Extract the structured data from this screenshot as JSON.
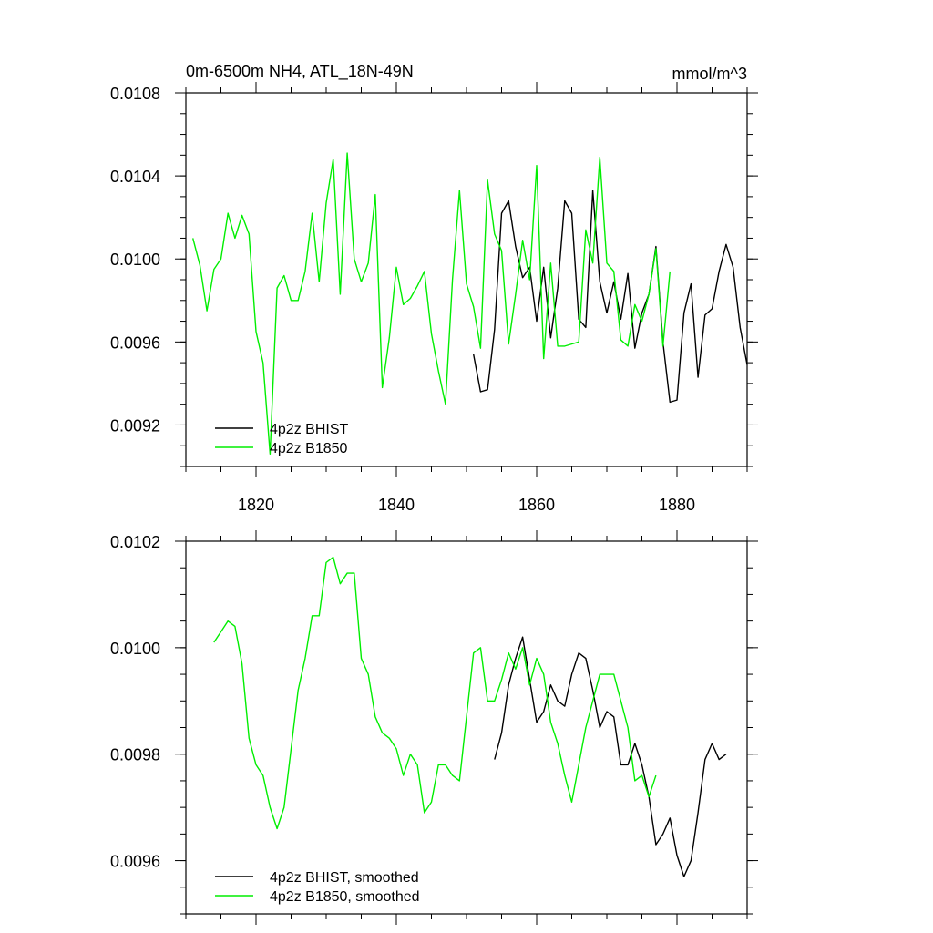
{
  "chart_data": [
    {
      "type": "line",
      "title": "0m-6500m NH4, ATL_18N-49N",
      "units": "mmol/m^3",
      "xlim": [
        1810,
        1890
      ],
      "ylim": [
        0.009,
        0.0108
      ],
      "x_ticks": [
        1820,
        1840,
        1860,
        1880
      ],
      "x_minor_step": 5,
      "y_ticks": [
        "0.0092",
        "0.0096",
        "0.0100",
        "0.0104",
        "0.0108"
      ],
      "y_minor_step": 0.0001,
      "grid": false,
      "legend_position": "bottom-left",
      "colors": {
        "bhist": "#000000",
        "b1850": "#00ee00"
      },
      "series": [
        {
          "name": "4p2z BHIST",
          "color": "#000000",
          "x_start": 1851,
          "values": [
            0.00954,
            0.00936,
            0.00937,
            0.00966,
            0.01022,
            0.01028,
            0.01006,
            0.00991,
            0.00996,
            0.0097,
            0.00996,
            0.00962,
            0.00986,
            0.01028,
            0.01022,
            0.00971,
            0.00967,
            0.01033,
            0.00989,
            0.00974,
            0.00989,
            0.00971,
            0.00993,
            0.00957,
            0.00974,
            0.00983,
            0.01006,
            0.0096,
            0.00931,
            0.00932,
            0.00974,
            0.00988,
            0.00943,
            0.00973,
            0.00976,
            0.00994,
            0.01007,
            0.00996,
            0.00967,
            0.00949
          ]
        },
        {
          "name": "4p2z B1850",
          "color": "#00ee00",
          "x_start": 1811,
          "values": [
            0.0101,
            0.00997,
            0.00975,
            0.00995,
            0.01,
            0.01022,
            0.0101,
            0.01021,
            0.01012,
            0.00965,
            0.0095,
            0.00906,
            0.00986,
            0.00992,
            0.0098,
            0.0098,
            0.00994,
            0.01022,
            0.00989,
            0.01027,
            0.01048,
            0.00983,
            0.01051,
            0.01,
            0.00989,
            0.00998,
            0.01031,
            0.00938,
            0.00962,
            0.00996,
            0.00978,
            0.00981,
            0.00987,
            0.00994,
            0.00964,
            0.00946,
            0.0093,
            0.0099,
            0.01033,
            0.00988,
            0.00977,
            0.00957,
            0.01038,
            0.01012,
            0.01004,
            0.00959,
            0.00983,
            0.01009,
            0.0099,
            0.01045,
            0.00952,
            0.00998,
            0.00958,
            0.00958,
            0.00959,
            0.0096,
            0.01014,
            0.00998,
            0.01049,
            0.00998,
            0.00994,
            0.00961,
            0.00958,
            0.00978,
            0.0097,
            0.00983,
            0.01005,
            0.00958,
            0.00994
          ]
        }
      ]
    },
    {
      "type": "line",
      "xlim": [
        1810,
        1890
      ],
      "ylim": [
        0.0095,
        0.0102
      ],
      "x_minor_step": 5,
      "y_ticks": [
        "0.0096",
        "0.0098",
        "0.0100",
        "0.0102"
      ],
      "y_minor_step": 5e-05,
      "grid": false,
      "legend_position": "bottom-left",
      "colors": {
        "bhist": "#000000",
        "b1850": "#00ee00"
      },
      "series": [
        {
          "name": "4p2z BHIST, smoothed",
          "color": "#000000",
          "x_start": 1854,
          "values": [
            0.00979,
            0.00984,
            0.00993,
            0.00998,
            0.01002,
            0.00994,
            0.00986,
            0.00988,
            0.00993,
            0.0099,
            0.00989,
            0.00995,
            0.00999,
            0.00998,
            0.00992,
            0.00985,
            0.00988,
            0.00987,
            0.00978,
            0.00978,
            0.00982,
            0.00978,
            0.00972,
            0.00963,
            0.00965,
            0.00968,
            0.00961,
            0.00957,
            0.0096,
            0.00969,
            0.00979,
            0.00982,
            0.00979,
            0.0098
          ]
        },
        {
          "name": "4p2z B1850, smoothed",
          "color": "#00ee00",
          "x_start": 1814,
          "values": [
            0.01001,
            0.01003,
            0.01005,
            0.01004,
            0.00997,
            0.00983,
            0.00978,
            0.00976,
            0.0097,
            0.00966,
            0.0097,
            0.00981,
            0.00992,
            0.00998,
            0.01006,
            0.01006,
            0.01016,
            0.01017,
            0.01012,
            0.01014,
            0.01014,
            0.00998,
            0.00995,
            0.00987,
            0.00984,
            0.00983,
            0.00981,
            0.00976,
            0.0098,
            0.00978,
            0.00969,
            0.00971,
            0.00978,
            0.00978,
            0.00976,
            0.00975,
            0.00987,
            0.00999,
            0.01,
            0.0099,
            0.0099,
            0.00994,
            0.00999,
            0.00996,
            0.01,
            0.00993,
            0.00998,
            0.00995,
            0.00986,
            0.00982,
            0.00976,
            0.00971,
            0.00978,
            0.00985,
            0.0099,
            0.00995,
            0.00995,
            0.00995,
            0.0099,
            0.00985,
            0.00975,
            0.00976,
            0.00972,
            0.00976
          ]
        }
      ]
    }
  ]
}
